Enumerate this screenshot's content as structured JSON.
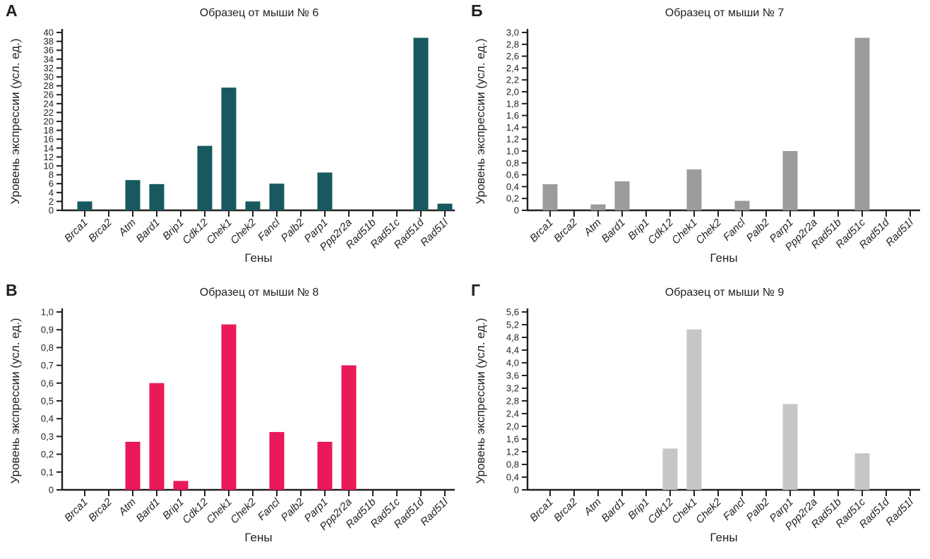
{
  "figure": {
    "background": "#ffffff",
    "axis_color": "#231f20",
    "genes": [
      "Brca1",
      "Brca2",
      "Atm",
      "Bard1",
      "Brip1",
      "Cdk12",
      "Chek1",
      "Chek2",
      "Fancl",
      "Palb2",
      "Parp1",
      "Ppp2r2a",
      "Rad51b",
      "Rad51c",
      "Rad51d",
      "Rad51l"
    ]
  },
  "chart_data": [
    {
      "type": "bar",
      "panel_letter": "А",
      "title": "Образец от мыши № 6",
      "xlabel": "Гены",
      "ylabel": "Уровень экспрессии (усл. ед.)",
      "bar_color": "#17595f",
      "axis_color": "#231f20",
      "grid": false,
      "legend": "none",
      "ylim": [
        0,
        40
      ],
      "ytick_step": 2,
      "decimals": 0,
      "ytick_labels": [
        "0",
        "2",
        "4",
        "6",
        "8",
        "10",
        "12",
        "14",
        "16",
        "18",
        "20",
        "22",
        "24",
        "26",
        "28",
        "30",
        "32",
        "34",
        "36",
        "38",
        "40"
      ],
      "categories": [
        "Brca1",
        "Brca2",
        "Atm",
        "Bard1",
        "Brip1",
        "Cdk12",
        "Chek1",
        "Chek2",
        "Fancl",
        "Palb2",
        "Parp1",
        "Ppp2r2a",
        "Rad51b",
        "Rad51c",
        "Rad51d",
        "Rad51l"
      ],
      "values": [
        2,
        0,
        6.8,
        5.9,
        0,
        14.5,
        27.6,
        2,
        6,
        0,
        8.5,
        0,
        0,
        0,
        38.8,
        1.5
      ]
    },
    {
      "type": "bar",
      "panel_letter": "Б",
      "title": "Образец от мыши № 7",
      "xlabel": "Гены",
      "ylabel": "Уровень экспрессии (усл. ед.)",
      "bar_color": "#9b9b9d",
      "axis_color": "#231f20",
      "grid": false,
      "legend": "none",
      "ylim": [
        0,
        3.0
      ],
      "ytick_step": 0.2,
      "decimals": 1,
      "ytick_labels": [
        "0",
        "0,2",
        "0,4",
        "0,6",
        "0,8",
        "1,0",
        "1,2",
        "1,4",
        "1,6",
        "1,8",
        "2,0",
        "2,2",
        "2,4",
        "2,6",
        "2,8",
        "3,0"
      ],
      "categories": [
        "Brca1",
        "Brca2",
        "Atm",
        "Bard1",
        "Brip1",
        "Cdk12",
        "Chek1",
        "Chek2",
        "Fancl",
        "Palb2",
        "Parp1",
        "Ppp2r2a",
        "Rad51b",
        "Rad51c",
        "Rad51d",
        "Rad51l"
      ],
      "values": [
        0.44,
        0,
        0.1,
        0.49,
        0,
        0,
        0.69,
        0,
        0.16,
        0,
        1.0,
        0,
        0,
        2.91,
        0,
        0
      ]
    },
    {
      "type": "bar",
      "panel_letter": "В",
      "title": "Образец от мыши № 8",
      "xlabel": "Гены",
      "ylabel": "Уровень экспрессии (усл. ед.)",
      "bar_color": "#ea1a58",
      "axis_color": "#231f20",
      "grid": false,
      "legend": "none",
      "ylim": [
        0,
        1.0
      ],
      "ytick_step": 0.1,
      "decimals": 1,
      "ytick_labels": [
        "0",
        "0,1",
        "0,2",
        "0,3",
        "0,4",
        "0,5",
        "0,6",
        "0,7",
        "0,8",
        "0,9",
        "1,0"
      ],
      "categories": [
        "Brca1",
        "Brca2",
        "Atm",
        "Bard1",
        "Brip1",
        "Cdk12",
        "Chek1",
        "Chek2",
        "Fancl",
        "Palb2",
        "Parp1",
        "Ppp2r2a",
        "Rad51b",
        "Rad51c",
        "Rad51d",
        "Rad51l"
      ],
      "values": [
        0,
        0,
        0.27,
        0.6,
        0.05,
        0,
        0.93,
        0,
        0.325,
        0,
        0.27,
        0.7,
        0,
        0,
        0,
        0
      ]
    },
    {
      "type": "bar",
      "panel_letter": "Г",
      "title": "Образец от мыши № 9",
      "xlabel": "Гены",
      "ylabel": "Уровень экспрессии (усл. ед.)",
      "bar_color": "#c6c6c8",
      "axis_color": "#231f20",
      "grid": false,
      "legend": "none",
      "ylim": [
        0,
        5.6
      ],
      "ytick_step": 0.4,
      "decimals": 1,
      "ytick_labels": [
        "0",
        "0,4",
        "0,8",
        "1,2",
        "1,6",
        "2,0",
        "2,4",
        "2,8",
        "3,2",
        "3,6",
        "4,0",
        "4,4",
        "4,8",
        "5,2",
        "5,6"
      ],
      "categories": [
        "Brca1",
        "Brca2",
        "Atm",
        "Bard1",
        "Brip1",
        "Cdk12",
        "Chek1",
        "Chek2",
        "Fancl",
        "Palb2",
        "Parp1",
        "Ppp2r2a",
        "Rad51b",
        "Rad51c",
        "Rad51d",
        "Rad51l"
      ],
      "values": [
        0,
        0,
        0,
        0,
        0,
        1.3,
        5.05,
        0,
        0,
        0,
        2.7,
        0,
        0,
        1.15,
        0,
        0
      ]
    }
  ]
}
